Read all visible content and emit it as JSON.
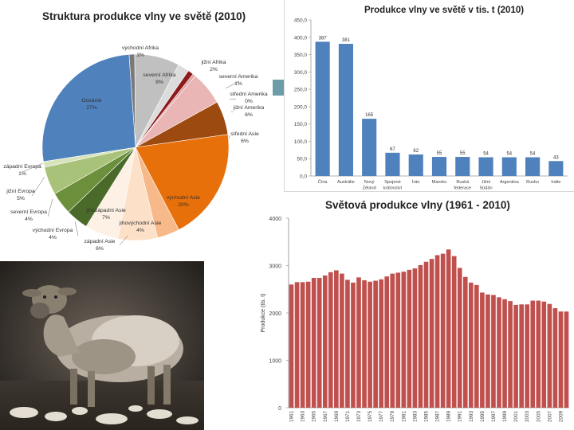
{
  "chart_data": [
    {
      "type": "pie",
      "title": "Struktura produkce vlny ve světě (2010)",
      "slices": [
        {
          "label": "východní Afrika",
          "pct": "1%",
          "value": 1,
          "color": "#7a7a7a"
        },
        {
          "label": "severní Afrika",
          "pct": "8%",
          "value": 8,
          "color": "#c0c0c0"
        },
        {
          "label": "jižní Afrika",
          "pct": "2%",
          "value": 2,
          "color": "#dcdcdc"
        },
        {
          "label": "severní Amerika",
          "pct": "1%",
          "value": 1,
          "color": "#8b1a1a"
        },
        {
          "label": "střední Amerika",
          "pct": "0%",
          "value": 0.5,
          "color": "#e0a0a0"
        },
        {
          "label": "jižní Amerika",
          "pct": "6%",
          "value": 6,
          "color": "#eab5b5"
        },
        {
          "label": "střední Asie",
          "pct": "6%",
          "value": 6,
          "color": "#9c4a10"
        },
        {
          "label": "východní Asie",
          "pct": "20%",
          "value": 20,
          "color": "#e8700a"
        },
        {
          "label": "jihovýchodní Asie",
          "pct": "4%",
          "value": 4,
          "color": "#f7b98a"
        },
        {
          "label": "jihozápadní Asie",
          "pct": "7%",
          "value": 7,
          "color": "#fde0c8"
        },
        {
          "label": "západní Asie",
          "pct": "6%",
          "value": 6,
          "color": "#fdf0e4"
        },
        {
          "label": "východní Evropa",
          "pct": "4%",
          "value": 4,
          "color": "#4a6a2a"
        },
        {
          "label": "severní Evropa",
          "pct": "4%",
          "value": 4,
          "color": "#6b8f3a"
        },
        {
          "label": "jižní Evropa",
          "pct": "5%",
          "value": 5,
          "color": "#a9c27a"
        },
        {
          "label": "západní Evropa",
          "pct": "1%",
          "value": 1,
          "color": "#d6e3bc"
        },
        {
          "label": "Oceánie",
          "pct": "27%",
          "value": 27,
          "color": "#4f81bd"
        }
      ],
      "display_labels": {
        "vychodni_afrika": [
          "východní Afrika",
          "1%"
        ],
        "severni_afrika": [
          "severní Afrika",
          "8%"
        ],
        "jizni_afrika": [
          "jižní Afrika",
          "2%"
        ],
        "severni_amerika": [
          "severní Amerika",
          "1%"
        ],
        "stredni_amerika": [
          "střední Amerika",
          "0%"
        ],
        "jizni_amerika": [
          "jižní Amerika",
          "6%"
        ],
        "stredni_asie": [
          "střední Asie",
          "6%"
        ],
        "vychodni_asie": [
          "východní Asie",
          "20%"
        ],
        "jihovychodni_asie": [
          "jihovýchodní Asie",
          "4%"
        ],
        "jihozapadni_asie": [
          "jihozápadní Asie",
          "7%"
        ],
        "zapadni_asie": [
          "západní Asie",
          "6%"
        ],
        "vychodni_evropa": [
          "východní Evropa",
          "4%"
        ],
        "severni_evropa": [
          "severní Evropa",
          "4%"
        ],
        "jizni_evropa": [
          "jižní Evropa",
          "5%"
        ],
        "zapadni_evropa": [
          "západní Evropa",
          "1%"
        ],
        "oceanie": [
          "Oceánie",
          "27%"
        ]
      }
    },
    {
      "type": "bar",
      "title": "Produkce vlny ve světě v tis. t (2010)",
      "categories": [
        "Čína",
        "Austrálie",
        "Nový Zéland",
        "Spojené království",
        "Írán",
        "Maroko",
        "Ruská federace",
        "Jižní Súdán",
        "Argentina",
        "Rusko",
        "Indie"
      ],
      "values": [
        387,
        381,
        165,
        67,
        62,
        55,
        55,
        54,
        54,
        54,
        43
      ],
      "data_labels": [
        "387",
        "381",
        "165",
        "67",
        "62",
        "55",
        "55",
        "54",
        "54",
        "54",
        "43"
      ],
      "ylim": [
        0,
        450
      ],
      "yticks": [
        "0,0",
        "50,0",
        "100,0",
        "150,0",
        "200,0",
        "250,0",
        "300,0",
        "350,0",
        "400,0",
        "450,0"
      ],
      "color": "#4f81bd"
    },
    {
      "type": "bar",
      "title": "Světová produkce vlny (1961 - 2010)",
      "ylabel": "Produkce (tis. t)",
      "ylim": [
        0,
        4000
      ],
      "yticks": [
        "0",
        "1000",
        "2000",
        "3000",
        "4000"
      ],
      "x": [
        1961,
        1962,
        1963,
        1964,
        1965,
        1966,
        1967,
        1968,
        1969,
        1970,
        1971,
        1972,
        1973,
        1974,
        1975,
        1976,
        1977,
        1978,
        1979,
        1980,
        1981,
        1982,
        1983,
        1984,
        1985,
        1986,
        1987,
        1988,
        1989,
        1990,
        1991,
        1992,
        1993,
        1994,
        1995,
        1996,
        1997,
        1998,
        1999,
        2000,
        2001,
        2002,
        2003,
        2004,
        2005,
        2006,
        2007,
        2008,
        2009,
        2010
      ],
      "xtick_labels": [
        "1961",
        "1963",
        "1965",
        "1967",
        "1969",
        "1971",
        "1973",
        "1975",
        "1977",
        "1979",
        "1981",
        "1983",
        "1985",
        "1987",
        "1989",
        "1991",
        "1993",
        "1995",
        "1997",
        "1999",
        "2001",
        "2003",
        "2005",
        "2007",
        "2009"
      ],
      "values": [
        2600,
        2650,
        2650,
        2660,
        2740,
        2740,
        2790,
        2860,
        2900,
        2830,
        2700,
        2640,
        2750,
        2690,
        2660,
        2680,
        2710,
        2770,
        2830,
        2850,
        2870,
        2910,
        2940,
        3010,
        3080,
        3140,
        3220,
        3250,
        3340,
        3200,
        2950,
        2760,
        2640,
        2590,
        2430,
        2390,
        2380,
        2330,
        2290,
        2250,
        2170,
        2180,
        2180,
        2260,
        2260,
        2240,
        2190,
        2100,
        2030,
        2030
      ],
      "color": "#c0504d"
    }
  ]
}
